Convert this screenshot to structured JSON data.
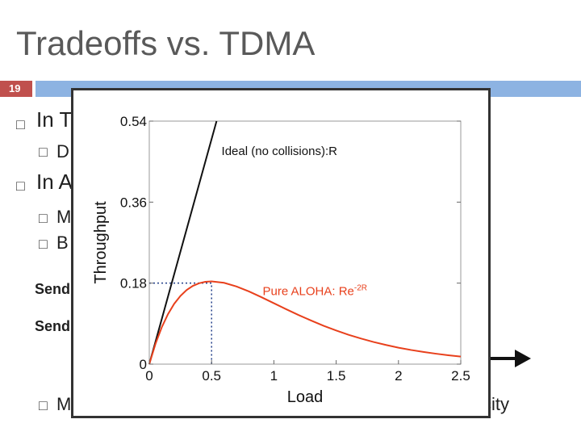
{
  "slide": {
    "title": "Tradeoffs vs. TDMA",
    "slide_number": "19",
    "bg_fragments": [
      "In T",
      "D",
      "In A",
      "M",
      "B",
      "Send",
      "Send",
      "M",
      "city"
    ]
  },
  "colors": {
    "ideal": "#111111",
    "aloha": "#e8401c",
    "guide": "#1f3c88",
    "header_bar": "#8db3e2",
    "slide_num_bg": "#c0504d"
  },
  "chart_data": {
    "type": "line",
    "xlabel": "Load",
    "ylabel": "Throughput",
    "xlim": [
      0,
      2.5
    ],
    "ylim": [
      0,
      0.54
    ],
    "xticks": [
      "0",
      "0.5",
      "1",
      "1.5",
      "2",
      "2.5"
    ],
    "yticks": [
      "0",
      "0.18",
      "0.36",
      "0.54"
    ],
    "series": [
      {
        "name": "Ideal (no collisions):R",
        "x": [
          0,
          0.54
        ],
        "y": [
          0,
          0.54
        ]
      },
      {
        "name": "Pure ALOHA: Re-2R",
        "x": [
          0,
          0.05,
          0.1,
          0.15,
          0.2,
          0.25,
          0.3,
          0.35,
          0.4,
          0.45,
          0.5,
          0.6,
          0.7,
          0.8,
          0.9,
          1.0,
          1.1,
          1.2,
          1.3,
          1.4,
          1.5,
          1.6,
          1.7,
          1.8,
          1.9,
          2.0,
          2.1,
          2.2,
          2.3,
          2.4,
          2.5
        ],
        "y": [
          0,
          0.0452,
          0.0819,
          0.1111,
          0.1341,
          0.1516,
          0.1647,
          0.1739,
          0.1797,
          0.1829,
          0.1839,
          0.1807,
          0.1726,
          0.1615,
          0.1488,
          0.1353,
          0.1219,
          0.1089,
          0.0967,
          0.0851,
          0.0747,
          0.0652,
          0.0568,
          0.0492,
          0.0426,
          0.0366,
          0.0315,
          0.0271,
          0.0232,
          0.0198,
          0.0168
        ]
      }
    ],
    "annotations": {
      "ideal_label": "Ideal (no collisions):R",
      "aloha_label_base": "Pure ALOHA: Re",
      "aloha_label_exp": "-2R",
      "peak": [
        0.5,
        0.18
      ]
    },
    "grid": false
  }
}
